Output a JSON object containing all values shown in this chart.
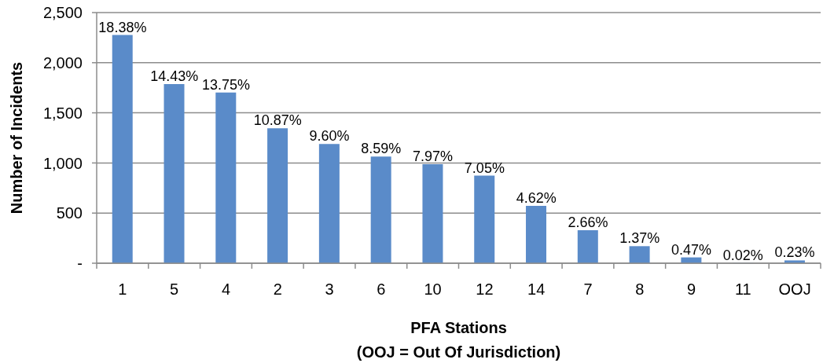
{
  "chart_data": {
    "type": "bar",
    "xlabel": "PFA Stations\n(OOJ = Out Of Jurisdiction)",
    "ylabel": "Number of Incidents",
    "categories": [
      "1",
      "5",
      "4",
      "2",
      "3",
      "6",
      "10",
      "12",
      "14",
      "7",
      "8",
      "9",
      "11",
      "OOJ"
    ],
    "values": [
      2276,
      1787,
      1703,
      1346,
      1189,
      1064,
      987,
      873,
      572,
      329,
      170,
      58,
      2,
      28
    ],
    "color": "#5a8bc9",
    "ylim": [
      0,
      2500
    ],
    "yticks": [
      {
        "value": 0,
        "label": "-"
      },
      500,
      {
        "value": 1000,
        "label": "1,000"
      },
      {
        "value": 1500,
        "label": "1,500"
      },
      {
        "value": 2000,
        "label": "2,000"
      },
      {
        "value": 2500,
        "label": "2,500"
      }
    ],
    "grid": "y",
    "annotations": [
      {
        "text": "18.38%",
        "x": "1",
        "y": 2276
      },
      {
        "text": "14.43%",
        "x": "5",
        "y": 1787
      },
      {
        "text": "13.75%",
        "x": "4",
        "y": 1703
      },
      {
        "text": "10.87%",
        "x": "2",
        "y": 1346
      },
      {
        "text": "9.60%",
        "x": "3",
        "y": 1189
      },
      {
        "text": "8.59%",
        "x": "6",
        "y": 1064
      },
      {
        "text": "7.97%",
        "x": "10",
        "y": 987
      },
      {
        "text": "7.05%",
        "x": "12",
        "y": 873
      },
      {
        "text": "4.62%",
        "x": "14",
        "y": 572
      },
      {
        "text": "2.66%",
        "x": "7",
        "y": 329
      },
      {
        "text": "1.37%",
        "x": "8",
        "y": 170
      },
      {
        "text": "0.47%",
        "x": "9",
        "y": 58
      },
      {
        "text": "0.02%",
        "x": "11",
        "y": 2
      },
      {
        "text": "0.23%",
        "x": "OOJ",
        "y": 28
      }
    ]
  }
}
